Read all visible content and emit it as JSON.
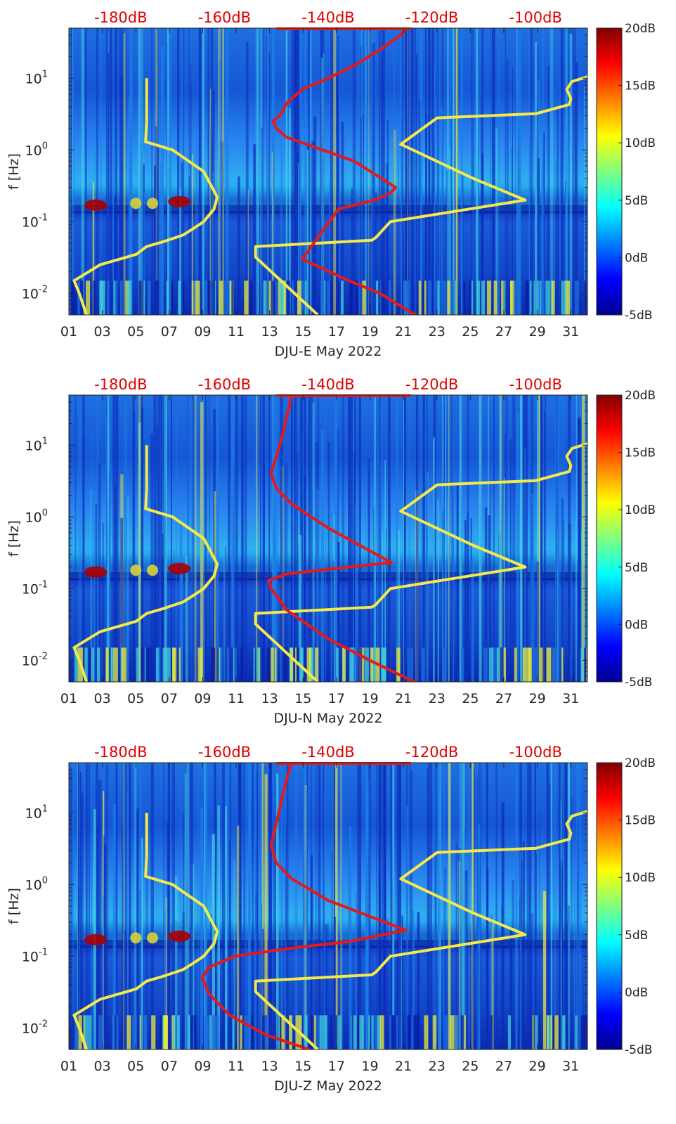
{
  "colors": {
    "model_curve": "#f5e94a",
    "station_curve": "#e31a1c",
    "top_scale_text": "#e00000",
    "frame": "#262626"
  },
  "colormap": "jet",
  "top_axis_ticks": [
    "-180dB",
    "-160dB",
    "-140dB",
    "-120dB",
    "-100dB"
  ],
  "colorbar_ticks": [
    "20dB",
    "15dB",
    "10dB",
    "5dB",
    "0dB",
    "-5dB"
  ],
  "colorbar_range": [
    -5,
    20
  ],
  "x_ticks": [
    "01",
    "03",
    "05",
    "07",
    "09",
    "11",
    "13",
    "15",
    "17",
    "19",
    "21",
    "23",
    "25",
    "27",
    "29",
    "31"
  ],
  "y_ticks": [
    {
      "base": "10",
      "exp": "1",
      "value": 10
    },
    {
      "base": "10",
      "exp": "0",
      "value": 1
    },
    {
      "base": "10",
      "exp": "-1",
      "value": 0.1
    },
    {
      "base": "10",
      "exp": "-2",
      "value": 0.01
    }
  ],
  "chart_data": [
    {
      "type": "heatmap",
      "xlabel": "DJU-E May 2022",
      "ylabel": "f [Hz]",
      "xlim": [
        1,
        32
      ],
      "ylim": [
        0.005,
        50
      ],
      "yscale": "log",
      "top_xlim_db": [
        -190,
        -90
      ],
      "series": [
        {
          "role": "yellow-low",
          "db": [
            -186.6,
            -188,
            -189,
            -184,
            -177,
            -175,
            -172,
            -170,
            -168,
            -166,
            -164,
            -162,
            -161.4,
            -164,
            -170,
            -175.2,
            -175,
            -175
          ],
          "f": [
            0.005,
            0.01,
            0.015,
            0.025,
            0.035,
            0.045,
            0.052,
            0.058,
            0.065,
            0.08,
            0.1,
            0.15,
            0.22,
            0.5,
            1.0,
            1.3,
            2.5,
            10
          ]
        },
        {
          "role": "yellow-high",
          "db": [
            -142,
            -154,
            -154,
            -131.6,
            -130.8,
            -128,
            -102,
            -112,
            -126,
            -119,
            -100,
            -93.5,
            -93.2,
            -94,
            -93,
            -90
          ],
          "f": [
            0.005,
            0.032,
            0.045,
            0.055,
            0.06,
            0.1,
            0.2,
            0.4,
            1.2,
            2.8,
            3.2,
            4.3,
            5.2,
            7,
            9,
            10.5
          ]
        },
        {
          "role": "red",
          "db": [
            -123.2,
            -130,
            -136,
            -145,
            -142,
            -138,
            -131,
            -128,
            -127,
            -135,
            -148,
            -150,
            -150.6,
            -149,
            -148,
            -145,
            -140,
            -135,
            -130,
            -126,
            -125
          ],
          "f": [
            0.005,
            0.01,
            0.015,
            0.03,
            0.06,
            0.15,
            0.2,
            0.25,
            0.3,
            0.7,
            1.5,
            2.0,
            2.5,
            3.2,
            4.5,
            7,
            10,
            15,
            25,
            40,
            50
          ]
        }
      ]
    },
    {
      "type": "heatmap",
      "xlabel": "DJU-N May 2022",
      "ylabel": "f [Hz]",
      "xlim": [
        1,
        32
      ],
      "ylim": [
        0.005,
        50
      ],
      "yscale": "log",
      "top_xlim_db": [
        -190,
        -90
      ],
      "series": [
        {
          "role": "yellow-low",
          "db": [
            -186.6,
            -188,
            -189,
            -184,
            -177,
            -175,
            -172,
            -170,
            -168,
            -166,
            -164,
            -162,
            -161.4,
            -164,
            -170,
            -175.2,
            -175,
            -175
          ],
          "f": [
            0.005,
            0.01,
            0.015,
            0.025,
            0.035,
            0.045,
            0.052,
            0.058,
            0.065,
            0.08,
            0.1,
            0.15,
            0.22,
            0.5,
            1.0,
            1.3,
            2.5,
            10
          ]
        },
        {
          "role": "yellow-high",
          "db": [
            -142,
            -154,
            -154,
            -131.6,
            -130.8,
            -128,
            -102,
            -112,
            -126,
            -119,
            -100,
            -93.5,
            -93.2,
            -94,
            -93,
            -90
          ],
          "f": [
            0.005,
            0.032,
            0.045,
            0.055,
            0.06,
            0.1,
            0.2,
            0.4,
            1.2,
            2.8,
            3.2,
            4.3,
            5.2,
            7,
            9,
            10.5
          ]
        },
        {
          "role": "red",
          "db": [
            -123.4,
            -132,
            -140,
            -148,
            -151,
            -151.5,
            -148,
            -136,
            -127.8,
            -140,
            -147,
            -150,
            -151,
            -150,
            -149,
            -148,
            -147
          ],
          "f": [
            0.005,
            0.01,
            0.02,
            0.05,
            0.1,
            0.13,
            0.16,
            0.2,
            0.23,
            0.7,
            1.5,
            2.5,
            4,
            7,
            12,
            25,
            50
          ]
        }
      ]
    },
    {
      "type": "heatmap",
      "xlabel": "DJU-Z May 2022",
      "ylabel": "f [Hz]",
      "xlim": [
        1,
        32
      ],
      "ylim": [
        0.005,
        50
      ],
      "yscale": "log",
      "top_xlim_db": [
        -190,
        -90
      ],
      "series": [
        {
          "role": "yellow-low",
          "db": [
            -186.6,
            -188,
            -189,
            -184,
            -177,
            -175,
            -172,
            -170,
            -168,
            -166,
            -164,
            -162,
            -161.4,
            -164,
            -170,
            -175.2,
            -175,
            -175
          ],
          "f": [
            0.005,
            0.01,
            0.015,
            0.025,
            0.035,
            0.045,
            0.052,
            0.058,
            0.065,
            0.08,
            0.1,
            0.15,
            0.22,
            0.5,
            1.0,
            1.3,
            2.5,
            10
          ]
        },
        {
          "role": "yellow-high",
          "db": [
            -142,
            -154,
            -154,
            -131.6,
            -130.8,
            -128,
            -102,
            -112,
            -126,
            -119,
            -100,
            -93.5,
            -93.2,
            -94,
            -93,
            -90
          ],
          "f": [
            0.005,
            0.032,
            0.045,
            0.055,
            0.06,
            0.1,
            0.2,
            0.4,
            1.2,
            2.8,
            3.2,
            4.3,
            5.2,
            7,
            9,
            10.5
          ]
        },
        {
          "role": "red",
          "db": [
            -143.6,
            -152,
            -159,
            -163,
            -164.3,
            -163,
            -158,
            -147,
            -136,
            -125,
            -140,
            -147,
            -150,
            -151,
            -150,
            -149,
            -148,
            -147
          ],
          "f": [
            0.005,
            0.008,
            0.015,
            0.03,
            0.05,
            0.07,
            0.1,
            0.13,
            0.16,
            0.23,
            0.6,
            1.2,
            2,
            3.5,
            7,
            15,
            30,
            50
          ]
        }
      ]
    }
  ]
}
